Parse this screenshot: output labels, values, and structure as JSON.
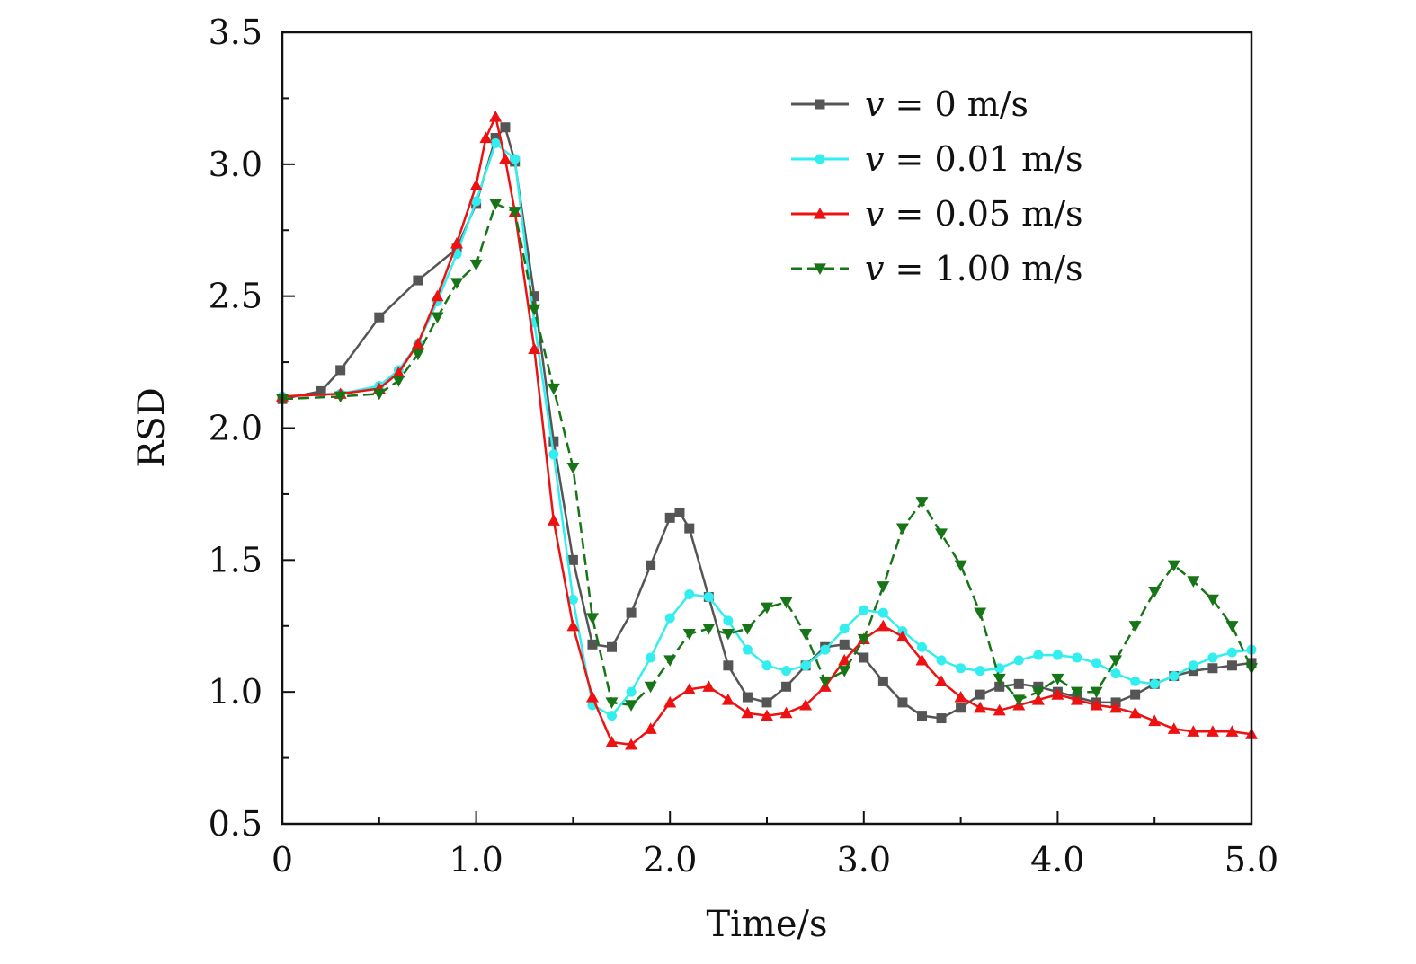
{
  "chart_data": {
    "type": "line",
    "title": "",
    "xlabel": "Time/s",
    "ylabel": "RSD",
    "xlim": [
      0,
      5.0
    ],
    "ylim": [
      0.5,
      3.5
    ],
    "xticks": [
      0,
      1.0,
      2.0,
      3.0,
      4.0,
      5.0
    ],
    "xtick_labels": [
      "0",
      "1.0",
      "2.0",
      "3.0",
      "4.0",
      "5.0"
    ],
    "yticks": [
      0.5,
      1.0,
      1.5,
      2.0,
      2.5,
      3.0,
      3.5
    ],
    "ytick_labels": [
      "0.5",
      "1.0",
      "1.5",
      "2.0",
      "2.5",
      "3.0",
      "3.5"
    ],
    "grid": false,
    "legend_position": "top-right",
    "series": [
      {
        "name": "v = 0 m/s",
        "legend_var": "v",
        "legend_rest": " = 0 m/s",
        "color": "#555555",
        "marker": "square",
        "dashed": false,
        "x": [
          0,
          0.2,
          0.3,
          0.5,
          0.7,
          0.9,
          1.0,
          1.1,
          1.15,
          1.2,
          1.3,
          1.4,
          1.5,
          1.6,
          1.7,
          1.8,
          1.9,
          2.0,
          2.05,
          2.1,
          2.2,
          2.3,
          2.4,
          2.5,
          2.6,
          2.7,
          2.8,
          2.9,
          3.0,
          3.1,
          3.2,
          3.3,
          3.4,
          3.5,
          3.6,
          3.7,
          3.8,
          3.9,
          4.0,
          4.1,
          4.2,
          4.3,
          4.4,
          4.5,
          4.6,
          4.7,
          4.8,
          4.9,
          5.0
        ],
        "y": [
          2.11,
          2.14,
          2.22,
          2.42,
          2.56,
          2.68,
          2.85,
          3.1,
          3.14,
          3.01,
          2.5,
          1.95,
          1.5,
          1.18,
          1.17,
          1.3,
          1.48,
          1.66,
          1.68,
          1.62,
          1.36,
          1.1,
          0.98,
          0.96,
          1.02,
          1.1,
          1.17,
          1.18,
          1.13,
          1.04,
          0.96,
          0.91,
          0.9,
          0.94,
          0.99,
          1.02,
          1.03,
          1.02,
          1.0,
          0.98,
          0.96,
          0.96,
          0.99,
          1.03,
          1.06,
          1.08,
          1.09,
          1.1,
          1.11
        ]
      },
      {
        "name": "v = 0.01 m/s",
        "legend_var": "v",
        "legend_rest": " = 0.01 m/s",
        "color": "#33EEEE",
        "marker": "circle",
        "dashed": false,
        "x": [
          0,
          0.3,
          0.5,
          0.6,
          0.7,
          0.8,
          0.9,
          1.0,
          1.1,
          1.2,
          1.3,
          1.4,
          1.5,
          1.6,
          1.7,
          1.8,
          1.9,
          2.0,
          2.1,
          2.2,
          2.3,
          2.4,
          2.5,
          2.6,
          2.7,
          2.8,
          2.9,
          3.0,
          3.1,
          3.2,
          3.3,
          3.4,
          3.5,
          3.6,
          3.7,
          3.8,
          3.9,
          4.0,
          4.1,
          4.2,
          4.3,
          4.4,
          4.5,
          4.6,
          4.7,
          4.8,
          4.9,
          5.0
        ],
        "y": [
          2.12,
          2.13,
          2.16,
          2.22,
          2.32,
          2.48,
          2.66,
          2.86,
          3.08,
          3.02,
          2.4,
          1.9,
          1.35,
          0.95,
          0.91,
          1.0,
          1.13,
          1.28,
          1.37,
          1.36,
          1.27,
          1.16,
          1.1,
          1.08,
          1.1,
          1.16,
          1.24,
          1.31,
          1.3,
          1.23,
          1.17,
          1.12,
          1.09,
          1.08,
          1.09,
          1.12,
          1.14,
          1.14,
          1.13,
          1.11,
          1.07,
          1.04,
          1.03,
          1.06,
          1.1,
          1.13,
          1.15,
          1.16
        ]
      },
      {
        "name": "v = 0.05 m/s",
        "legend_var": "v",
        "legend_rest": " = 0.05 m/s",
        "color": "#EE1111",
        "marker": "triangle-up",
        "dashed": false,
        "x": [
          0,
          0.3,
          0.5,
          0.6,
          0.7,
          0.8,
          0.9,
          1.0,
          1.05,
          1.1,
          1.15,
          1.2,
          1.3,
          1.4,
          1.5,
          1.6,
          1.7,
          1.8,
          1.9,
          2.0,
          2.1,
          2.2,
          2.3,
          2.4,
          2.5,
          2.6,
          2.7,
          2.8,
          2.9,
          3.0,
          3.1,
          3.2,
          3.3,
          3.4,
          3.5,
          3.6,
          3.7,
          3.8,
          3.9,
          4.0,
          4.1,
          4.2,
          4.3,
          4.4,
          4.5,
          4.6,
          4.7,
          4.8,
          4.9,
          5.0
        ],
        "y": [
          2.12,
          2.13,
          2.15,
          2.21,
          2.32,
          2.5,
          2.7,
          2.92,
          3.1,
          3.18,
          3.02,
          2.82,
          2.3,
          1.65,
          1.25,
          0.98,
          0.81,
          0.8,
          0.86,
          0.96,
          1.01,
          1.02,
          0.97,
          0.92,
          0.91,
          0.92,
          0.95,
          1.02,
          1.12,
          1.2,
          1.25,
          1.21,
          1.12,
          1.04,
          0.98,
          0.94,
          0.93,
          0.95,
          0.97,
          0.99,
          0.97,
          0.95,
          0.94,
          0.92,
          0.89,
          0.86,
          0.85,
          0.85,
          0.85,
          0.84
        ]
      },
      {
        "name": "v = 1.00 m/s",
        "legend_var": "v",
        "legend_rest": " = 1.00 m/s",
        "color": "#177517",
        "marker": "triangle-down",
        "dashed": true,
        "x": [
          0,
          0.3,
          0.5,
          0.6,
          0.7,
          0.8,
          0.9,
          1.0,
          1.1,
          1.2,
          1.3,
          1.4,
          1.5,
          1.6,
          1.7,
          1.8,
          1.9,
          2.0,
          2.1,
          2.2,
          2.3,
          2.4,
          2.5,
          2.6,
          2.7,
          2.8,
          2.9,
          3.0,
          3.1,
          3.2,
          3.3,
          3.4,
          3.5,
          3.6,
          3.7,
          3.8,
          3.9,
          4.0,
          4.1,
          4.2,
          4.3,
          4.4,
          4.5,
          4.6,
          4.7,
          4.8,
          4.9,
          5.0
        ],
        "y": [
          2.11,
          2.12,
          2.13,
          2.18,
          2.28,
          2.42,
          2.55,
          2.62,
          2.85,
          2.82,
          2.45,
          2.15,
          1.85,
          1.28,
          0.96,
          0.95,
          1.02,
          1.12,
          1.22,
          1.24,
          1.22,
          1.24,
          1.32,
          1.34,
          1.22,
          1.04,
          1.08,
          1.2,
          1.4,
          1.62,
          1.72,
          1.6,
          1.48,
          1.3,
          1.05,
          0.97,
          1.0,
          1.05,
          1.0,
          1.0,
          1.12,
          1.25,
          1.38,
          1.48,
          1.42,
          1.35,
          1.25,
          1.09
        ]
      }
    ]
  }
}
